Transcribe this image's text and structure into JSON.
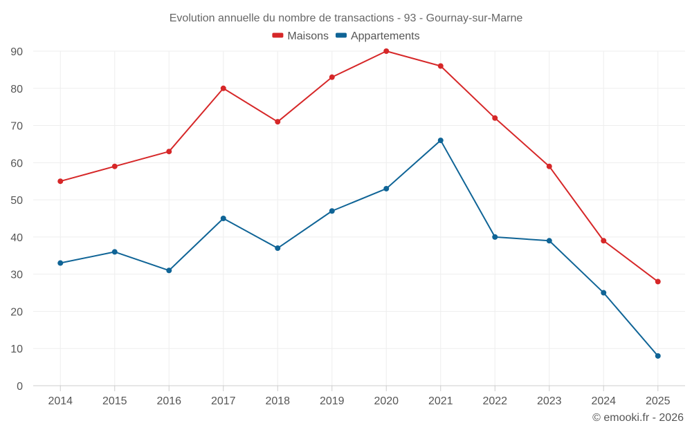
{
  "chart_data": {
    "type": "line",
    "title": "Evolution annuelle du nombre de transactions - 93 - Gournay-sur-Marne",
    "xlabel": "",
    "ylabel": "",
    "categories": [
      "2014",
      "2015",
      "2016",
      "2017",
      "2018",
      "2019",
      "2020",
      "2021",
      "2022",
      "2023",
      "2024",
      "2025"
    ],
    "ylim": [
      0,
      90
    ],
    "yticks": [
      0,
      10,
      20,
      30,
      40,
      50,
      60,
      70,
      80,
      90
    ],
    "grid": true,
    "legend_position": "top-center",
    "series": [
      {
        "name": "Maisons",
        "color": "#d62728",
        "values": [
          55,
          59,
          63,
          80,
          71,
          83,
          90,
          86,
          72,
          59,
          39,
          28
        ]
      },
      {
        "name": "Appartements",
        "color": "#0f6496",
        "values": [
          33,
          36,
          31,
          45,
          37,
          47,
          53,
          66,
          40,
          39,
          25,
          8
        ]
      }
    ]
  },
  "credit": "© emooki.fr - 2026"
}
